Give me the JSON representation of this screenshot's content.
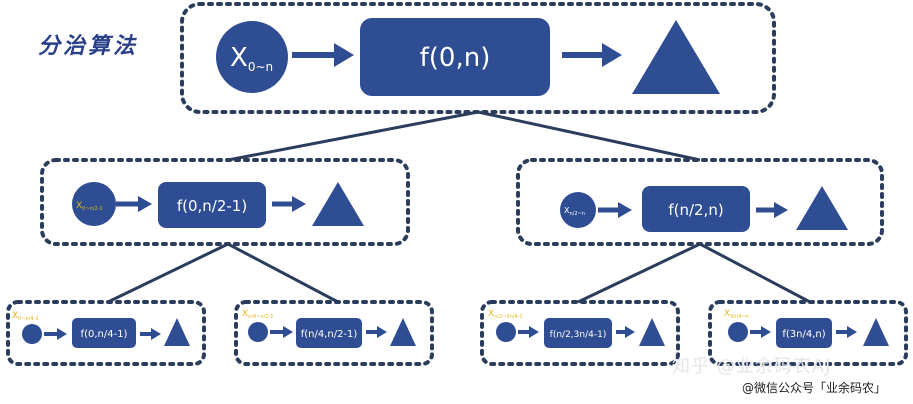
{
  "title": "分治算法",
  "colors": {
    "box_fill": "#2f4d93",
    "border": "#2a3d5c",
    "text_light": "#ffffff",
    "label_yellow": "#e2b719"
  },
  "top": {
    "input": "X",
    "input_sub": "0~n",
    "func": "f(0,n)"
  },
  "left": {
    "input": "X",
    "input_sub": "0~n/2-1",
    "func": "f(0,n/2-1)"
  },
  "right": {
    "input": "X",
    "input_sub": "n/2~n",
    "func": "f(n/2,n)"
  },
  "leaves": [
    {
      "input": "X",
      "input_sub": "0~n/4-1",
      "func": "f(0,n/4-1)"
    },
    {
      "input": "X",
      "input_sub": "n/4~n/2-1",
      "func": "f(n/4,n/2-1)"
    },
    {
      "input": "X",
      "input_sub": "n/2~3n/4-1",
      "func": "f(n/2,3n/4-1)"
    },
    {
      "input": "X",
      "input_sub": "3n/4~n",
      "func": "f(3n/4,n)"
    }
  ],
  "watermark": {
    "zhihu": "知乎 @业余码农AJ",
    "wechat": "@微信公众号「业余码农」"
  }
}
